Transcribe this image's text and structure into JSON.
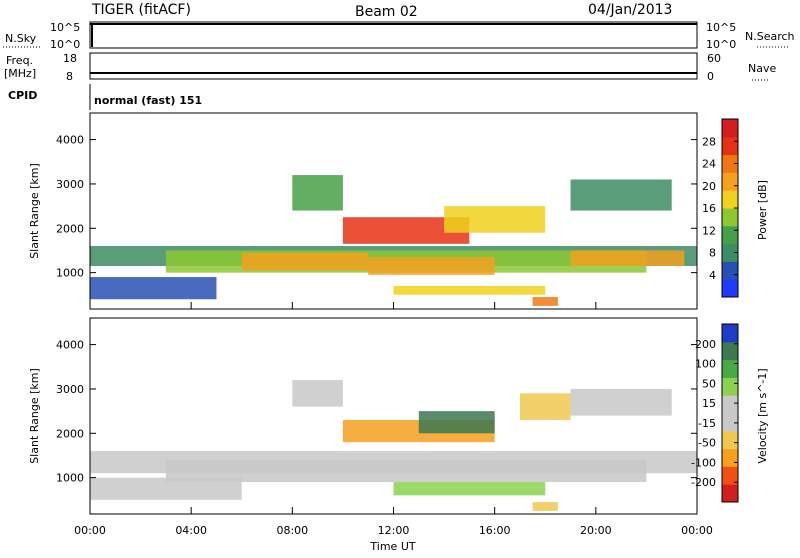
{
  "header": {
    "title": "TIGER (fitACF)",
    "beam": "Beam 02",
    "date": "04/Jan/2013"
  },
  "top_panels": {
    "nsky_label": "N.Sky",
    "nsky_ticks": [
      "10^5",
      "10^0"
    ],
    "nsearch_label": "N.Search",
    "nsearch_ticks": [
      "10^5",
      "10^0"
    ],
    "freq_label": "Freq.",
    "freq_unit": "[MHz]",
    "freq_ticks": [
      "18",
      "8"
    ],
    "nave_label": "Nave",
    "nave_ticks": [
      "60",
      "0"
    ],
    "cpid_label": "CPID",
    "cpid_text": "normal (fast) 151"
  },
  "colors": {
    "power": [
      "#1e3cff",
      "#2850b4",
      "#3c8c64",
      "#46a046",
      "#8cc832",
      "#f0d21e",
      "#f5a01e",
      "#f07814",
      "#e63214",
      "#d21e1e"
    ],
    "velocity": [
      "#d21e1e",
      "#f05014",
      "#f5a01e",
      "#f0c850",
      "#c8c8c8",
      "#c8c8c8",
      "#8cd250",
      "#46aa46",
      "#3c7850",
      "#1e3cc8"
    ]
  },
  "chart_data": [
    {
      "type": "heatmap",
      "panel": "power",
      "ylabel": "Slant Range [km]",
      "yticks": [
        1000,
        2000,
        3000,
        4000
      ],
      "ylim": [
        180,
        4600
      ],
      "xlim": [
        0,
        24
      ],
      "xticks": [
        "00:00",
        "04:00",
        "08:00",
        "12:00",
        "16:00",
        "20:00",
        "00:00"
      ],
      "colorbar_label": "Power [dB]",
      "colorbar_ticks": [
        "4",
        "8",
        "12",
        "16",
        "20",
        "24",
        "28"
      ],
      "colorbar_range": [
        0,
        31
      ],
      "regions": [
        {
          "x": [
            0,
            24
          ],
          "y": [
            1150,
            1600
          ],
          "value": 9
        },
        {
          "x": [
            3,
            22
          ],
          "y": [
            1000,
            1500
          ],
          "value": 15
        },
        {
          "x": [
            6,
            11
          ],
          "y": [
            1050,
            1450
          ],
          "value": 19
        },
        {
          "x": [
            11,
            16
          ],
          "y": [
            950,
            1350
          ],
          "value": 21
        },
        {
          "x": [
            19,
            23.5
          ],
          "y": [
            1150,
            1500
          ],
          "value": 20
        },
        {
          "x": [
            10,
            15
          ],
          "y": [
            1650,
            2250
          ],
          "value": 25
        },
        {
          "x": [
            14,
            18
          ],
          "y": [
            1900,
            2500
          ],
          "value": 16
        },
        {
          "x": [
            8,
            10
          ],
          "y": [
            2400,
            3200
          ],
          "value": 12
        },
        {
          "x": [
            19,
            23
          ],
          "y": [
            2400,
            3100
          ],
          "value": 7
        },
        {
          "x": [
            0,
            5
          ],
          "y": [
            400,
            900
          ],
          "value": 6
        },
        {
          "x": [
            12,
            18
          ],
          "y": [
            500,
            700
          ],
          "value": 18
        },
        {
          "x": [
            17.5,
            18.5
          ],
          "y": [
            250,
            450
          ],
          "value": 24
        }
      ]
    },
    {
      "type": "heatmap",
      "panel": "velocity",
      "ylabel": "Slant Range [km]",
      "yticks": [
        1000,
        2000,
        3000,
        4000
      ],
      "ylim": [
        180,
        4600
      ],
      "xlim": [
        0,
        24
      ],
      "xticks": [
        "00:00",
        "04:00",
        "08:00",
        "12:00",
        "16:00",
        "20:00",
        "00:00"
      ],
      "xlabel": "Time UT",
      "colorbar_label": "Velocity [m s^-1]",
      "colorbar_ticks": [
        "-200",
        "-100",
        "-50",
        "-15",
        "15",
        "50",
        "100",
        "200"
      ],
      "colorbar_range": [
        -250,
        250
      ],
      "regions": [
        {
          "x": [
            0,
            24
          ],
          "y": [
            1100,
            1600
          ],
          "value": 0
        },
        {
          "x": [
            3,
            22
          ],
          "y": [
            900,
            1400
          ],
          "value": -5
        },
        {
          "x": [
            0,
            6
          ],
          "y": [
            500,
            1000
          ],
          "value": -30
        },
        {
          "x": [
            10,
            16
          ],
          "y": [
            1800,
            2300
          ],
          "value": -120
        },
        {
          "x": [
            13,
            16
          ],
          "y": [
            2000,
            2500
          ],
          "value": 180
        },
        {
          "x": [
            8,
            10
          ],
          "y": [
            2600,
            3200
          ],
          "value": 40
        },
        {
          "x": [
            17,
            19
          ],
          "y": [
            2300,
            2900
          ],
          "value": -80
        },
        {
          "x": [
            19,
            23
          ],
          "y": [
            2400,
            3000
          ],
          "value": 5
        },
        {
          "x": [
            12,
            18
          ],
          "y": [
            600,
            900
          ],
          "value": 60
        },
        {
          "x": [
            17.5,
            18.5
          ],
          "y": [
            250,
            450
          ],
          "value": -60
        }
      ]
    }
  ]
}
